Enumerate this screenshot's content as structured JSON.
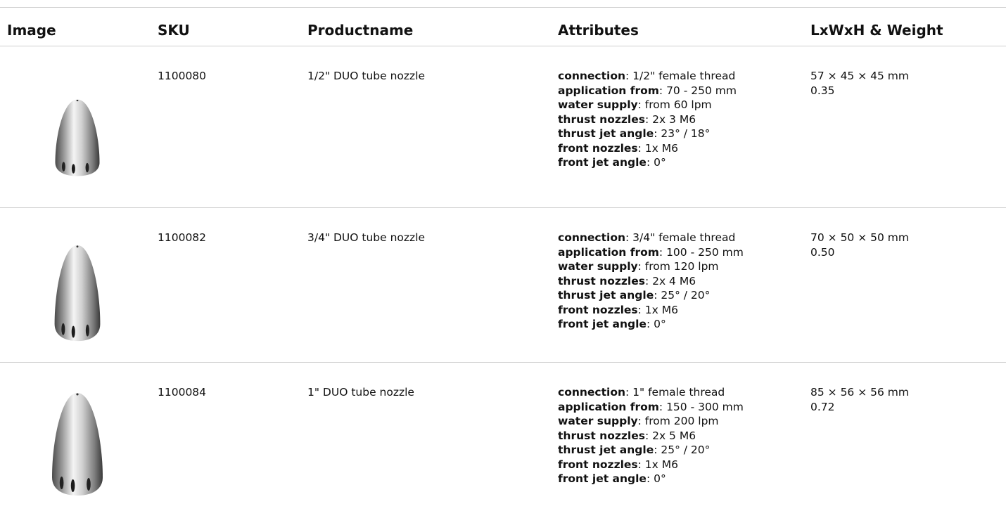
{
  "table": {
    "headers": [
      "Image",
      "SKU",
      "Productname",
      "Attributes",
      "LxWxH & Weight"
    ],
    "rows": [
      {
        "sku": "1100080",
        "name": "1/2\" DUO tube nozzle",
        "attributes": [
          {
            "label": "connection",
            "value": ": 1/2\" female thread"
          },
          {
            "label": "application from",
            "value": ": 70 - 250 mm"
          },
          {
            "label": "water supply",
            "value": ": from 60 lpm"
          },
          {
            "label": "thrust nozzles",
            "value": ": 2x 3 M6"
          },
          {
            "label": "thrust jet angle",
            "value": ": 23° / 18°"
          },
          {
            "label": "front nozzles",
            "value": ": 1x M6"
          },
          {
            "label": "front jet angle",
            "value": ": 0°"
          }
        ],
        "dimensions": "57 × 45 × 45 mm",
        "weight": "0.35"
      },
      {
        "sku": "1100082",
        "name": "3/4\" DUO tube nozzle",
        "attributes": [
          {
            "label": "connection",
            "value": ": 3/4\" female thread"
          },
          {
            "label": "application from",
            "value": ": 100 - 250 mm"
          },
          {
            "label": "water supply",
            "value": ": from 120 lpm"
          },
          {
            "label": "thrust nozzles",
            "value": ": 2x 4 M6"
          },
          {
            "label": "thrust jet angle",
            "value": ": 25° / 20°"
          },
          {
            "label": "front nozzles",
            "value": ": 1x M6"
          },
          {
            "label": "front jet angle",
            "value": ": 0°"
          }
        ],
        "dimensions": "70 × 50 × 50 mm",
        "weight": "0.50"
      },
      {
        "sku": "1100084",
        "name": "1\" DUO tube nozzle",
        "attributes": [
          {
            "label": "connection",
            "value": ": 1\" female thread"
          },
          {
            "label": "application from",
            "value": ": 150 - 300 mm"
          },
          {
            "label": "water supply",
            "value": ": from 200 lpm"
          },
          {
            "label": "thrust nozzles",
            "value": ": 2x 5 M6"
          },
          {
            "label": "thrust jet angle",
            "value": ": 25° / 20°"
          },
          {
            "label": "front nozzles",
            "value": ": 1x M6"
          },
          {
            "label": "front jet angle",
            "value": ": 0°"
          }
        ],
        "dimensions": "85 × 56 × 56 mm",
        "weight": "0.72"
      }
    ]
  }
}
